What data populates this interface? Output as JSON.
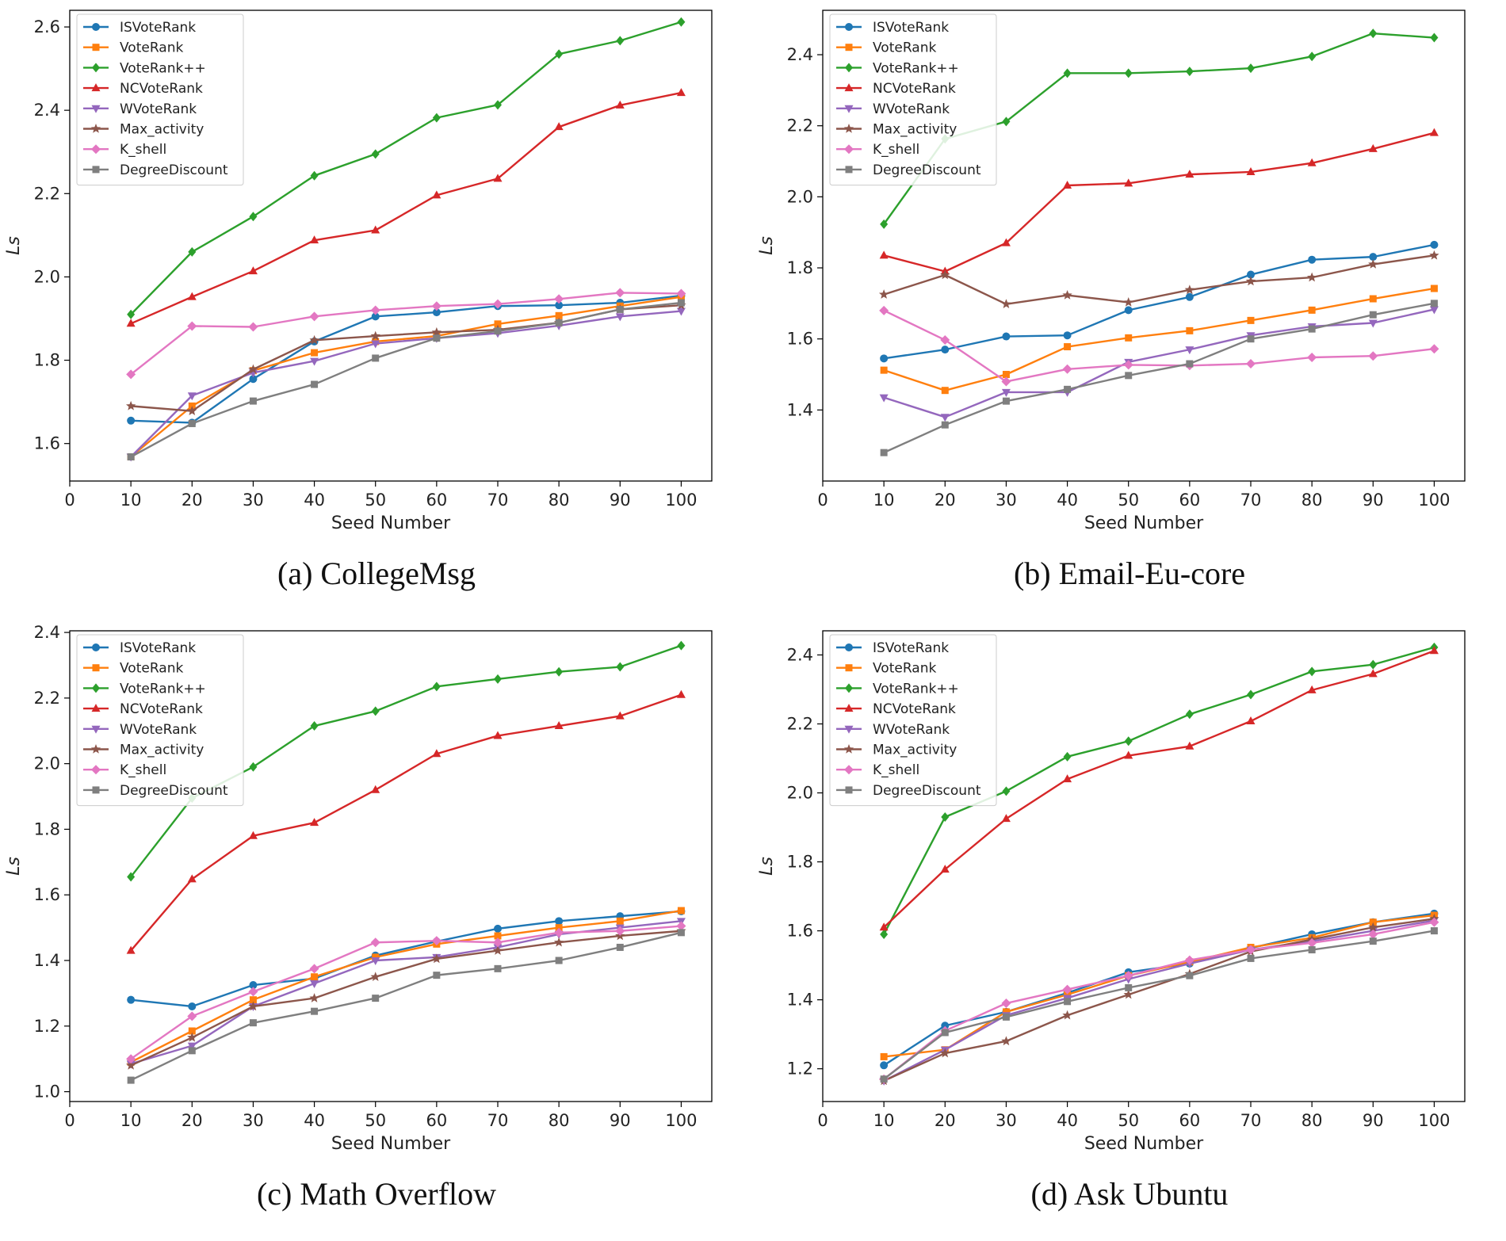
{
  "chart_data": [
    {
      "type": "line",
      "caption": "(a) CollegeMsg",
      "xlabel": "Seed Number",
      "ylabel": "Ls",
      "xlim": [
        0,
        105
      ],
      "ylim": [
        1.51,
        2.64
      ],
      "xticks": [
        0,
        10,
        20,
        30,
        40,
        50,
        60,
        70,
        80,
        90,
        100
      ],
      "yticks": [
        1.6,
        1.8,
        2.0,
        2.2,
        2.4,
        2.6
      ],
      "ytick_labels": [
        "1.6",
        "1.8",
        "2.0",
        "2.2",
        "2.4",
        "2.6"
      ],
      "x": [
        10,
        20,
        30,
        40,
        50,
        60,
        70,
        80,
        90,
        100
      ],
      "series": [
        {
          "name": "ISVoteRank",
          "color": "#1f77b4",
          "marker": "circle",
          "values": [
            1.655,
            1.65,
            1.755,
            1.845,
            1.905,
            1.915,
            1.93,
            1.932,
            1.938,
            1.955
          ]
        },
        {
          "name": "VoteRank",
          "color": "#ff7f0e",
          "marker": "square",
          "values": [
            1.568,
            1.69,
            1.775,
            1.818,
            1.845,
            1.858,
            1.887,
            1.907,
            1.93,
            1.952
          ]
        },
        {
          "name": "VoteRank++",
          "color": "#2ca02c",
          "marker": "diamond",
          "values": [
            1.91,
            2.06,
            2.145,
            2.243,
            2.295,
            2.382,
            2.413,
            2.535,
            2.567,
            2.612
          ]
        },
        {
          "name": "NCVoteRank",
          "color": "#d62728",
          "marker": "triangle-up",
          "values": [
            1.888,
            1.952,
            2.014,
            2.088,
            2.112,
            2.196,
            2.236,
            2.36,
            2.412,
            2.442
          ]
        },
        {
          "name": "WVoteRank",
          "color": "#9467bd",
          "marker": "triangle-down",
          "values": [
            1.568,
            1.715,
            1.77,
            1.798,
            1.84,
            1.853,
            1.865,
            1.883,
            1.905,
            1.918
          ]
        },
        {
          "name": "Max_activity",
          "color": "#8c564b",
          "marker": "star",
          "values": [
            1.69,
            1.678,
            1.778,
            1.848,
            1.858,
            1.867,
            1.873,
            1.89,
            1.922,
            1.932
          ]
        },
        {
          "name": "K_shell",
          "color": "#e377c2",
          "marker": "plus",
          "values": [
            1.766,
            1.882,
            1.88,
            1.905,
            1.92,
            1.93,
            1.935,
            1.947,
            1.962,
            1.96
          ]
        },
        {
          "name": "DegreeDiscount",
          "color": "#7f7f7f",
          "marker": "square",
          "values": [
            1.568,
            1.648,
            1.702,
            1.742,
            1.805,
            1.853,
            1.87,
            1.89,
            1.922,
            1.938
          ]
        }
      ]
    },
    {
      "type": "line",
      "caption": "(b) Email-Eu-core",
      "xlabel": "Seed Number",
      "ylabel": "Ls",
      "xlim": [
        0,
        105
      ],
      "ylim": [
        1.2,
        2.525
      ],
      "xticks": [
        0,
        10,
        20,
        30,
        40,
        50,
        60,
        70,
        80,
        90,
        100
      ],
      "yticks": [
        1.4,
        1.6,
        1.8,
        2.0,
        2.2,
        2.4
      ],
      "ytick_labels": [
        "1.4",
        "1.6",
        "1.8",
        "2.0",
        "2.2",
        "2.4"
      ],
      "x": [
        10,
        20,
        30,
        40,
        50,
        60,
        70,
        80,
        90,
        100
      ],
      "series": [
        {
          "name": "ISVoteRank",
          "color": "#1f77b4",
          "marker": "circle",
          "values": [
            1.545,
            1.57,
            1.607,
            1.61,
            1.681,
            1.718,
            1.781,
            1.823,
            1.831,
            1.865
          ]
        },
        {
          "name": "VoteRank",
          "color": "#ff7f0e",
          "marker": "square",
          "values": [
            1.512,
            1.455,
            1.5,
            1.578,
            1.603,
            1.623,
            1.652,
            1.681,
            1.713,
            1.742
          ]
        },
        {
          "name": "VoteRank++",
          "color": "#2ca02c",
          "marker": "diamond",
          "values": [
            1.923,
            2.163,
            2.212,
            2.348,
            2.348,
            2.353,
            2.362,
            2.395,
            2.46,
            2.448
          ]
        },
        {
          "name": "NCVoteRank",
          "color": "#d62728",
          "marker": "triangle-up",
          "values": [
            1.835,
            1.79,
            1.87,
            2.032,
            2.038,
            2.063,
            2.07,
            2.095,
            2.135,
            2.18
          ]
        },
        {
          "name": "WVoteRank",
          "color": "#9467bd",
          "marker": "triangle-down",
          "values": [
            1.435,
            1.38,
            1.45,
            1.45,
            1.535,
            1.57,
            1.61,
            1.635,
            1.645,
            1.683
          ]
        },
        {
          "name": "Max_activity",
          "color": "#8c564b",
          "marker": "star",
          "values": [
            1.725,
            1.78,
            1.698,
            1.723,
            1.703,
            1.738,
            1.762,
            1.773,
            1.81,
            1.835
          ]
        },
        {
          "name": "K_shell",
          "color": "#e377c2",
          "marker": "plus",
          "values": [
            1.68,
            1.597,
            1.48,
            1.515,
            1.527,
            1.525,
            1.53,
            1.548,
            1.552,
            1.572
          ]
        },
        {
          "name": "DegreeDiscount",
          "color": "#7f7f7f",
          "marker": "square",
          "values": [
            1.28,
            1.358,
            1.425,
            1.458,
            1.497,
            1.53,
            1.6,
            1.628,
            1.668,
            1.7
          ]
        }
      ]
    },
    {
      "type": "line",
      "caption": "(c) Math Overflow",
      "xlabel": "Seed Number",
      "ylabel": "Ls",
      "xlim": [
        0,
        105
      ],
      "ylim": [
        0.97,
        2.405
      ],
      "xticks": [
        0,
        10,
        20,
        30,
        40,
        50,
        60,
        70,
        80,
        90,
        100
      ],
      "yticks": [
        1.0,
        1.2,
        1.4,
        1.6,
        1.8,
        2.0,
        2.2,
        2.4
      ],
      "ytick_labels": [
        "1.0",
        "1.2",
        "1.4",
        "1.6",
        "1.8",
        "2.0",
        "2.2",
        "2.4"
      ],
      "x": [
        10,
        20,
        30,
        40,
        50,
        60,
        70,
        80,
        90,
        100
      ],
      "series": [
        {
          "name": "ISVoteRank",
          "color": "#1f77b4",
          "marker": "circle",
          "values": [
            1.28,
            1.26,
            1.325,
            1.345,
            1.415,
            1.458,
            1.497,
            1.52,
            1.535,
            1.55
          ]
        },
        {
          "name": "VoteRank",
          "color": "#ff7f0e",
          "marker": "square",
          "values": [
            1.09,
            1.185,
            1.28,
            1.35,
            1.41,
            1.45,
            1.475,
            1.5,
            1.52,
            1.552
          ]
        },
        {
          "name": "VoteRank++",
          "color": "#2ca02c",
          "marker": "diamond",
          "values": [
            1.655,
            1.895,
            1.99,
            2.115,
            2.16,
            2.235,
            2.258,
            2.28,
            2.295,
            2.36
          ]
        },
        {
          "name": "NCVoteRank",
          "color": "#d62728",
          "marker": "triangle-up",
          "values": [
            1.43,
            1.648,
            1.78,
            1.82,
            1.92,
            2.03,
            2.085,
            2.115,
            2.145,
            2.21
          ]
        },
        {
          "name": "WVoteRank",
          "color": "#9467bd",
          "marker": "triangle-down",
          "values": [
            1.085,
            1.14,
            1.26,
            1.33,
            1.4,
            1.41,
            1.44,
            1.48,
            1.5,
            1.52
          ]
        },
        {
          "name": "Max_activity",
          "color": "#8c564b",
          "marker": "star",
          "values": [
            1.08,
            1.165,
            1.26,
            1.285,
            1.35,
            1.405,
            1.43,
            1.455,
            1.475,
            1.49
          ]
        },
        {
          "name": "K_shell",
          "color": "#e377c2",
          "marker": "plus",
          "values": [
            1.1,
            1.23,
            1.305,
            1.375,
            1.455,
            1.46,
            1.455,
            1.485,
            1.49,
            1.505
          ]
        },
        {
          "name": "DegreeDiscount",
          "color": "#7f7f7f",
          "marker": "square",
          "values": [
            1.035,
            1.125,
            1.21,
            1.245,
            1.285,
            1.355,
            1.375,
            1.4,
            1.44,
            1.485
          ]
        }
      ]
    },
    {
      "type": "line",
      "caption": "(d) Ask Ubuntu",
      "xlabel": "Seed Number",
      "ylabel": "Ls",
      "xlim": [
        0,
        105
      ],
      "ylim": [
        1.105,
        2.47
      ],
      "xticks": [
        0,
        10,
        20,
        30,
        40,
        50,
        60,
        70,
        80,
        90,
        100
      ],
      "yticks": [
        1.2,
        1.4,
        1.6,
        1.8,
        2.0,
        2.2,
        2.4
      ],
      "ytick_labels": [
        "1.2",
        "1.4",
        "1.6",
        "1.8",
        "2.0",
        "2.2",
        "2.4"
      ],
      "x": [
        10,
        20,
        30,
        40,
        50,
        60,
        70,
        80,
        90,
        100
      ],
      "series": [
        {
          "name": "ISVoteRank",
          "color": "#1f77b4",
          "marker": "circle",
          "values": [
            1.21,
            1.325,
            1.365,
            1.42,
            1.48,
            1.505,
            1.55,
            1.59,
            1.625,
            1.65
          ]
        },
        {
          "name": "VoteRank",
          "color": "#ff7f0e",
          "marker": "square",
          "values": [
            1.235,
            1.255,
            1.365,
            1.415,
            1.47,
            1.51,
            1.552,
            1.58,
            1.625,
            1.645
          ]
        },
        {
          "name": "VoteRank++",
          "color": "#2ca02c",
          "marker": "diamond",
          "values": [
            1.59,
            1.93,
            2.005,
            2.105,
            2.15,
            2.228,
            2.285,
            2.352,
            2.372,
            2.422
          ]
        },
        {
          "name": "NCVoteRank",
          "color": "#d62728",
          "marker": "triangle-up",
          "values": [
            1.61,
            1.778,
            1.925,
            2.04,
            2.108,
            2.135,
            2.208,
            2.298,
            2.345,
            2.412
          ]
        },
        {
          "name": "WVoteRank",
          "color": "#9467bd",
          "marker": "triangle-down",
          "values": [
            1.165,
            1.255,
            1.355,
            1.405,
            1.46,
            1.505,
            1.545,
            1.57,
            1.6,
            1.63
          ]
        },
        {
          "name": "Max_activity",
          "color": "#8c564b",
          "marker": "star",
          "values": [
            1.165,
            1.245,
            1.28,
            1.355,
            1.415,
            1.475,
            1.54,
            1.575,
            1.61,
            1.635
          ]
        },
        {
          "name": "K_shell",
          "color": "#e377c2",
          "marker": "plus",
          "values": [
            1.17,
            1.31,
            1.39,
            1.43,
            1.47,
            1.515,
            1.545,
            1.565,
            1.59,
            1.625
          ]
        },
        {
          "name": "DegreeDiscount",
          "color": "#7f7f7f",
          "marker": "square",
          "values": [
            1.17,
            1.305,
            1.35,
            1.395,
            1.435,
            1.47,
            1.52,
            1.545,
            1.57,
            1.6
          ]
        }
      ]
    }
  ]
}
